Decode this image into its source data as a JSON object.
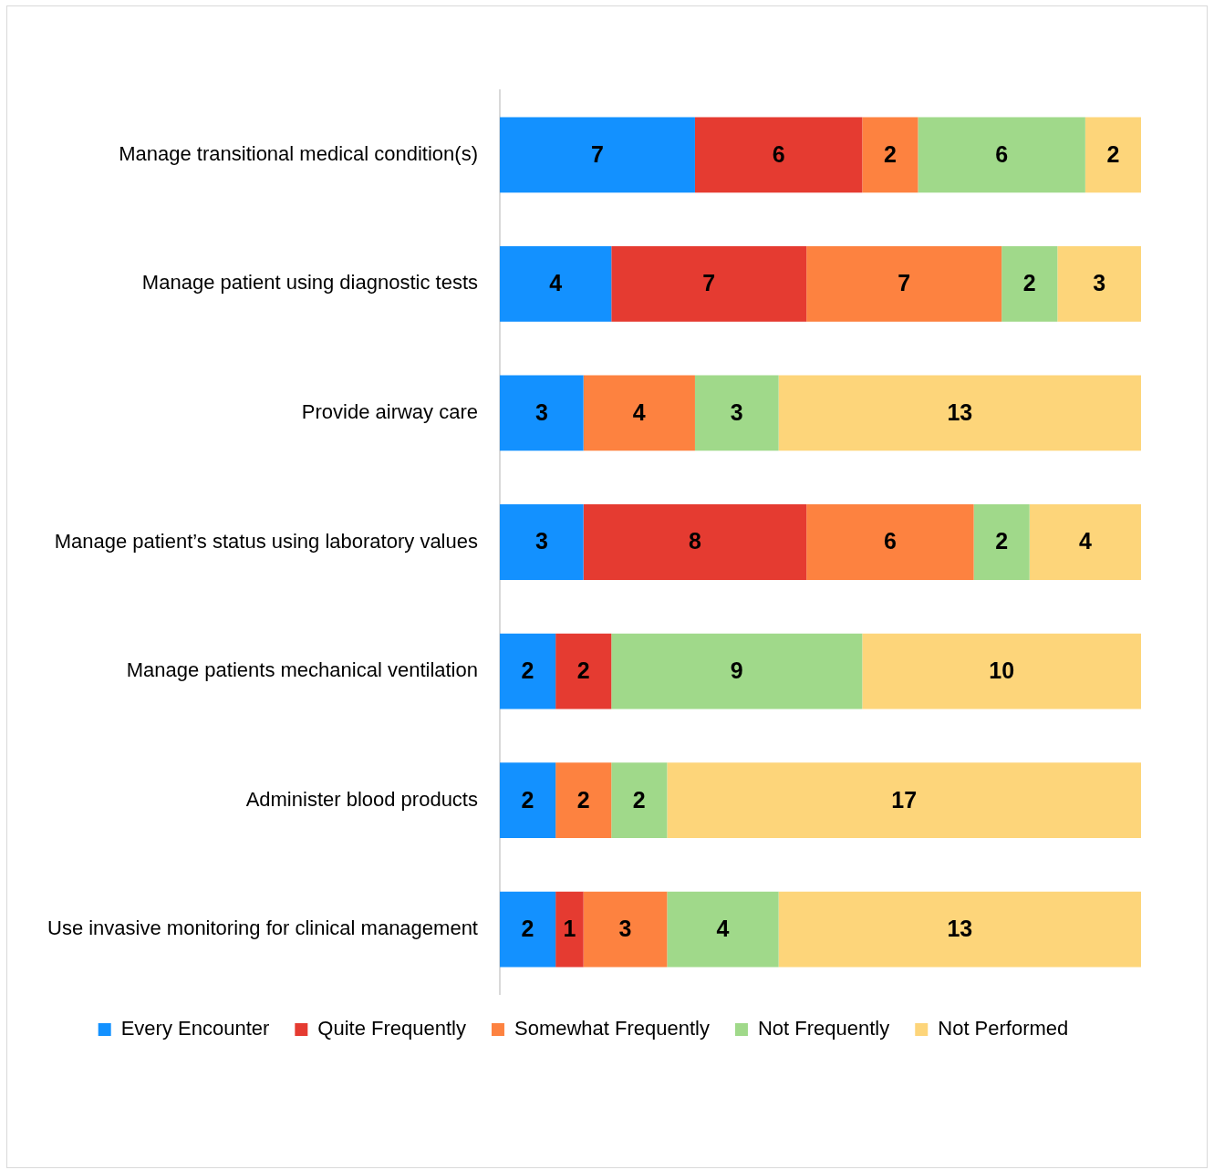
{
  "chart_data": {
    "type": "bar",
    "orientation": "horizontal",
    "stacked": true,
    "categories": [
      "Manage transitional medical condition(s)",
      "Manage patient using diagnostic tests",
      "Provide airway care",
      "Manage patient’s status using laboratory values",
      "Manage patients mechanical ventilation",
      "Administer blood products",
      "Use invasive monitoring for clinical management"
    ],
    "series": [
      {
        "name": "Every Encounter",
        "color": "#1391ff",
        "values": [
          7,
          4,
          3,
          3,
          2,
          2,
          2
        ]
      },
      {
        "name": "Quite Frequently",
        "color": "#e53b31",
        "values": [
          6,
          7,
          null,
          8,
          2,
          null,
          1
        ]
      },
      {
        "name": "Somewhat Frequently",
        "color": "#fd8240",
        "values": [
          2,
          7,
          4,
          6,
          null,
          2,
          3
        ]
      },
      {
        "name": "Not Frequently",
        "color": "#a0d98a",
        "values": [
          6,
          2,
          3,
          2,
          9,
          2,
          4
        ]
      },
      {
        "name": "Not Performed",
        "color": "#fdd57a",
        "values": [
          2,
          3,
          13,
          4,
          10,
          17,
          13
        ]
      }
    ],
    "xlim": [
      0,
      23
    ],
    "data_labels": true,
    "legend": "bottom",
    "tick_labels": "y"
  }
}
